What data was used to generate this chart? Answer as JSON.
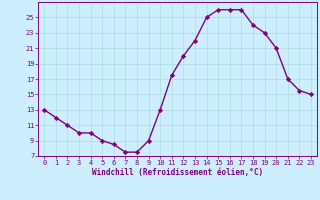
{
  "x": [
    0,
    1,
    2,
    3,
    4,
    5,
    6,
    7,
    8,
    9,
    10,
    11,
    12,
    13,
    14,
    15,
    16,
    17,
    18,
    19,
    20,
    21,
    22,
    23
  ],
  "y": [
    13,
    12,
    11,
    10,
    10,
    9,
    8.5,
    7.5,
    7.5,
    9,
    13,
    17.5,
    20,
    22,
    25,
    26,
    26,
    26,
    24,
    23,
    21,
    17,
    15.5,
    15
  ],
  "xlabel": "Windchill (Refroidissement éolien,°C)",
  "xlim": [
    -0.5,
    23.5
  ],
  "ylim": [
    7,
    27
  ],
  "yticks": [
    7,
    9,
    11,
    13,
    15,
    17,
    19,
    21,
    23,
    25
  ],
  "xticks": [
    0,
    1,
    2,
    3,
    4,
    5,
    6,
    7,
    8,
    9,
    10,
    11,
    12,
    13,
    14,
    15,
    16,
    17,
    18,
    19,
    20,
    21,
    22,
    23
  ],
  "line_color": "#800080",
  "marker_color": "#800080",
  "bg_color": "#cceeff",
  "grid_color": "#aadddd",
  "label_color": "#800080",
  "tick_color": "#800080",
  "spine_color": "#800080",
  "tick_fontsize": 5.0,
  "xlabel_fontsize": 5.5,
  "linewidth": 1.0,
  "markersize": 2.2
}
